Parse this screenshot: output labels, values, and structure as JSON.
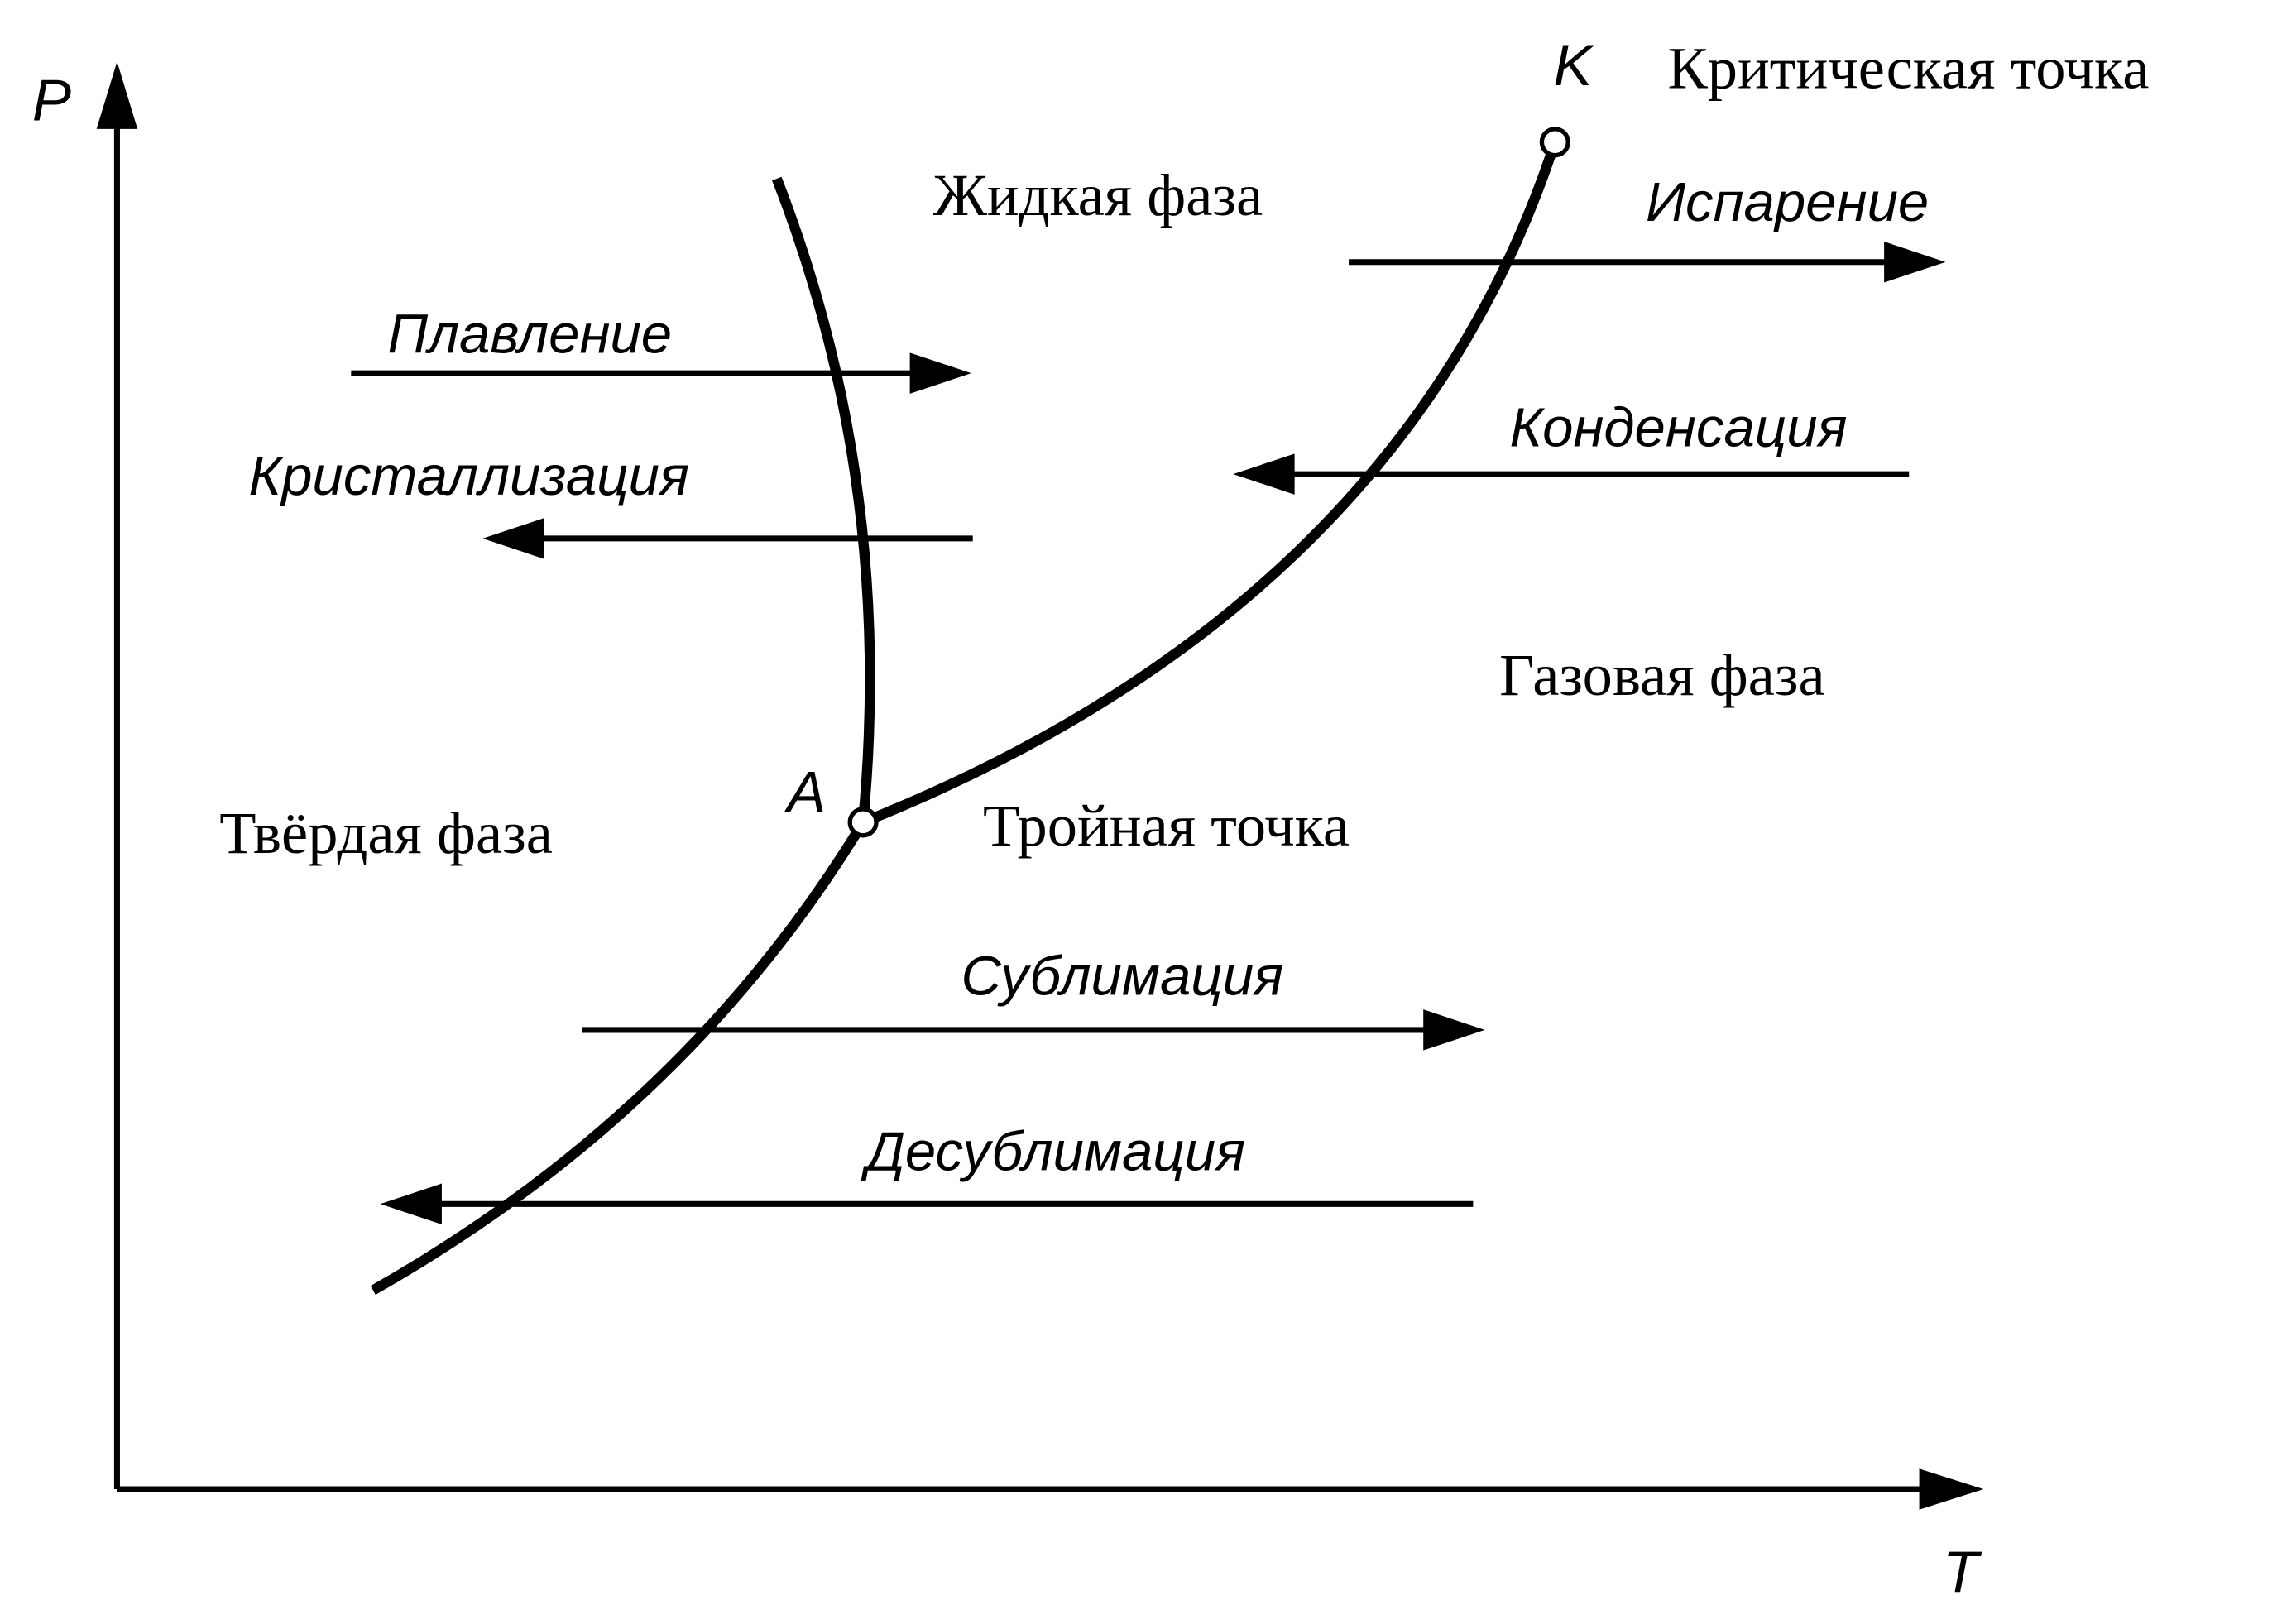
{
  "axes": {
    "y_label": "P",
    "x_label": "T"
  },
  "points": [
    {
      "label": "K",
      "description": "Критическая точка"
    },
    {
      "label": "А",
      "description": "Тройная точка"
    }
  ],
  "regions": [
    "Жидкая фаза",
    "Газовая фаза",
    "Твёрдая фаза"
  ],
  "processes": [
    "Испарение",
    "Плавление",
    "Кристаллизация",
    "Конденсация",
    "Сублимация",
    "Десублимация"
  ]
}
